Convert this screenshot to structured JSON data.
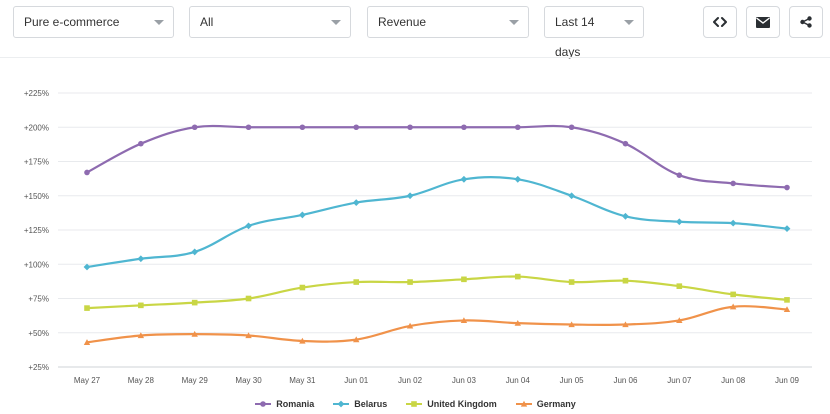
{
  "filters": {
    "store_type": "Pure e-commerce",
    "category": "All",
    "metric": "Revenue",
    "period": "Last 14 days"
  },
  "icons": {
    "embed": "code-icon",
    "email": "envelope-icon",
    "share": "share-icon"
  },
  "chart_data": {
    "type": "line",
    "title": "",
    "xlabel": "",
    "ylabel": "",
    "categories": [
      "May 27",
      "May 28",
      "May 29",
      "May 30",
      "May 31",
      "Jun 01",
      "Jun 02",
      "Jun 03",
      "Jun 04",
      "Jun 05",
      "Jun 06",
      "Jun 07",
      "Jun 08",
      "Jun 09"
    ],
    "y_ticks": [
      25,
      50,
      75,
      100,
      125,
      150,
      175,
      200,
      225
    ],
    "y_tick_labels": [
      "+25%",
      "+50%",
      "+75%",
      "+100%",
      "+125%",
      "+150%",
      "+175%",
      "+200%",
      "+225%"
    ],
    "ylim": [
      25,
      225
    ],
    "grid": true,
    "legend_position": "bottom",
    "series": [
      {
        "name": "Romania",
        "color": "#8e6bb0",
        "marker": "circle",
        "values": [
          167,
          188,
          200,
          200,
          200,
          200,
          200,
          200,
          200,
          200,
          188,
          165,
          159,
          156
        ]
      },
      {
        "name": "Belarus",
        "color": "#4fb6d1",
        "marker": "diamond",
        "values": [
          98,
          104,
          109,
          128,
          136,
          145,
          150,
          162,
          162,
          150,
          135,
          131,
          130,
          126
        ]
      },
      {
        "name": "United Kingdom",
        "color": "#c9d645",
        "marker": "square",
        "values": [
          68,
          70,
          72,
          75,
          83,
          87,
          87,
          89,
          91,
          87,
          88,
          84,
          78,
          74
        ]
      },
      {
        "name": "Germany",
        "color": "#f0924a",
        "marker": "triangle",
        "values": [
          43,
          48,
          49,
          48,
          44,
          45,
          55,
          59,
          57,
          56,
          56,
          59,
          69,
          67
        ]
      }
    ]
  }
}
